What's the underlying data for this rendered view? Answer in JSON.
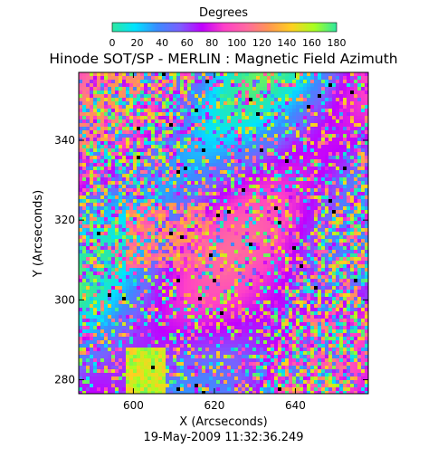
{
  "chart_data": {
    "type": "heatmap",
    "title": "Hinode SOT/SP - MERLIN : Magnetic Field Azimuth",
    "xlabel": "X (Arcseconds)",
    "ylabel": "Y (Arcseconds)",
    "date_label": "19-May-2009 11:32:36.249",
    "colorbar": {
      "title": "Degrees",
      "ticks": [
        0,
        20,
        40,
        60,
        80,
        100,
        120,
        140,
        160,
        180
      ],
      "range": [
        0,
        180
      ],
      "colormap": [
        "#2ee8a0",
        "#00e4ff",
        "#3a8cff",
        "#7a60ff",
        "#c000ff",
        "#ff40c8",
        "#ff6aa0",
        "#ff9850",
        "#ffd020",
        "#a8ff20",
        "#2ee8a0"
      ]
    },
    "x_ticks": [
      600,
      620,
      640
    ],
    "y_ticks": [
      280,
      300,
      320,
      340
    ],
    "xlim": [
      586.5,
      658
    ],
    "ylim": [
      276.5,
      357
    ],
    "grid": false
  }
}
